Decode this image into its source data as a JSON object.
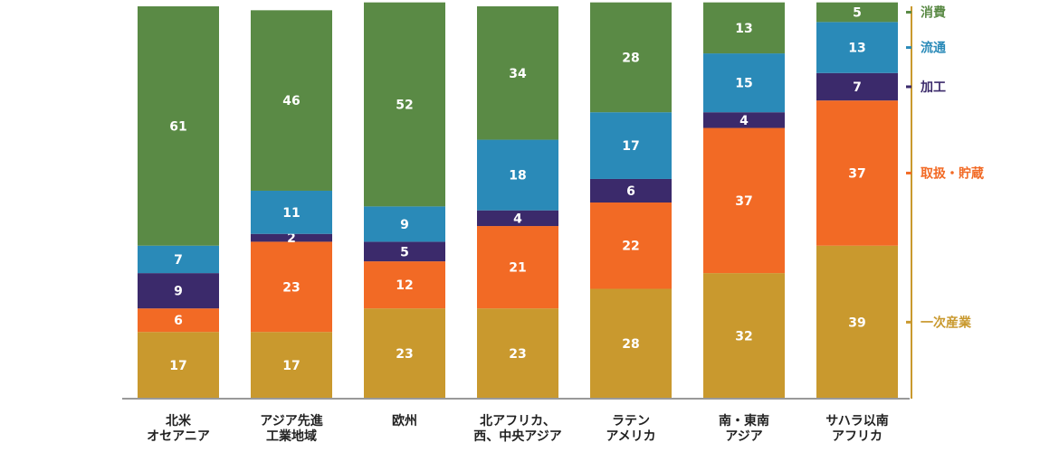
{
  "chart_data": {
    "type": "bar",
    "stacked": true,
    "categories": [
      [
        "北米",
        "オセアニア"
      ],
      [
        "アジア先進",
        "工業地域"
      ],
      [
        "欧州"
      ],
      [
        "北アフリカ、",
        "西、中央アジア"
      ],
      [
        "ラテン",
        "アメリカ"
      ],
      [
        "南・東南",
        "アジア"
      ],
      [
        "サハラ以南",
        "アフリカ"
      ]
    ],
    "series": [
      {
        "name": "一次産業",
        "color": "#c9992e",
        "values": [
          17,
          17,
          23,
          23,
          28,
          32,
          39
        ]
      },
      {
        "name": "取扱・貯蔵",
        "color": "#f26a25",
        "values": [
          6,
          23,
          12,
          21,
          22,
          37,
          37
        ]
      },
      {
        "name": "加工",
        "color": "#3b2a6b",
        "values": [
          9,
          2,
          5,
          4,
          6,
          4,
          7
        ]
      },
      {
        "name": "流通",
        "color": "#2a8ab8",
        "values": [
          7,
          11,
          9,
          18,
          17,
          15,
          13
        ]
      },
      {
        "name": "消費",
        "color": "#5a8a45",
        "values": [
          61,
          46,
          52,
          34,
          28,
          13,
          5
        ]
      }
    ],
    "legend_position": "right",
    "ylim": [
      0,
      100
    ]
  }
}
